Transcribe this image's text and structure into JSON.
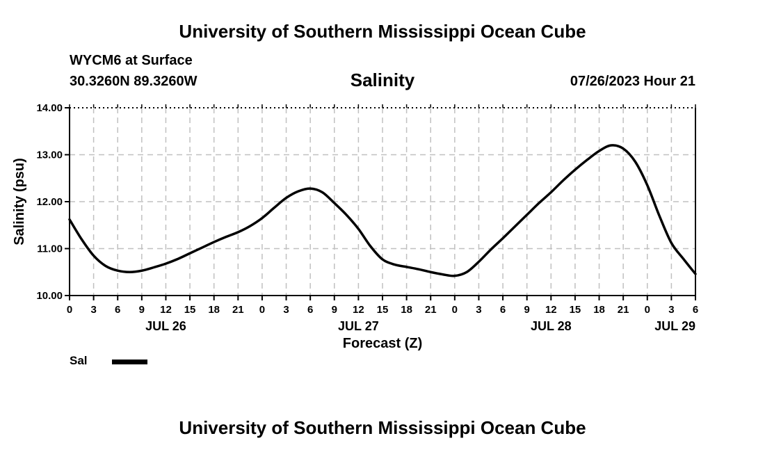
{
  "header": {
    "title": "University of Southern Mississippi Ocean Cube",
    "station": "WYCM6 at Surface",
    "coordinates": "30.3260N  89.3260W",
    "datetime": "07/26/2023 Hour 21"
  },
  "footer": {
    "title": "University of Southern Mississippi Ocean Cube"
  },
  "legend": {
    "label": "Sal"
  },
  "chart_data": {
    "type": "line",
    "title": "Salinity",
    "xlabel": "Forecast (Z)",
    "ylabel": "Salinity (psu)",
    "xlim": [
      0,
      78
    ],
    "ylim": [
      10.0,
      14.0
    ],
    "grid": true,
    "y_ticks": [
      "10.00",
      "11.00",
      "12.00",
      "13.00",
      "14.00"
    ],
    "y_tick_values": [
      10,
      11,
      12,
      13,
      14
    ],
    "x_ticks": [
      "0",
      "3",
      "6",
      "9",
      "12",
      "15",
      "18",
      "21",
      "0",
      "3",
      "6",
      "9",
      "12",
      "15",
      "18",
      "21",
      "0",
      "3",
      "6",
      "9",
      "12",
      "15",
      "18",
      "21",
      "0",
      "3",
      "6"
    ],
    "x_tick_values": [
      0,
      3,
      6,
      9,
      12,
      15,
      18,
      21,
      24,
      27,
      30,
      33,
      36,
      39,
      42,
      45,
      48,
      51,
      54,
      57,
      60,
      63,
      66,
      69,
      72,
      75,
      78
    ],
    "date_labels": [
      {
        "label": "JUL 26",
        "x": 12
      },
      {
        "label": "JUL 27",
        "x": 36
      },
      {
        "label": "JUL 28",
        "x": 60
      },
      {
        "label": "JUL 29",
        "x": 78
      }
    ],
    "series": [
      {
        "name": "Sal",
        "color": "#000000",
        "x": [
          0,
          1.5,
          3,
          4.5,
          6,
          7.5,
          9,
          10.5,
          12,
          13.5,
          15,
          16.5,
          18,
          19.5,
          21,
          22.5,
          24,
          25.5,
          27,
          28.5,
          30,
          31.5,
          33,
          34.5,
          36,
          37.5,
          39,
          40.5,
          42,
          43.5,
          45,
          46.5,
          48,
          49.5,
          51,
          52.5,
          54,
          55.5,
          57,
          58.5,
          60,
          61.5,
          63,
          64.5,
          66,
          67.5,
          69,
          70.5,
          72,
          73.5,
          75,
          76.5,
          78
        ],
        "values": [
          11.62,
          11.2,
          10.85,
          10.63,
          10.53,
          10.5,
          10.53,
          10.6,
          10.68,
          10.78,
          10.9,
          11.02,
          11.14,
          11.25,
          11.35,
          11.48,
          11.65,
          11.87,
          12.08,
          12.22,
          12.28,
          12.2,
          11.97,
          11.72,
          11.42,
          11.05,
          10.77,
          10.66,
          10.61,
          10.56,
          10.5,
          10.45,
          10.42,
          10.5,
          10.72,
          10.98,
          11.22,
          11.47,
          11.72,
          11.97,
          12.2,
          12.45,
          12.68,
          12.89,
          13.08,
          13.2,
          13.13,
          12.85,
          12.35,
          11.7,
          11.12,
          10.78,
          10.46
        ]
      }
    ]
  }
}
